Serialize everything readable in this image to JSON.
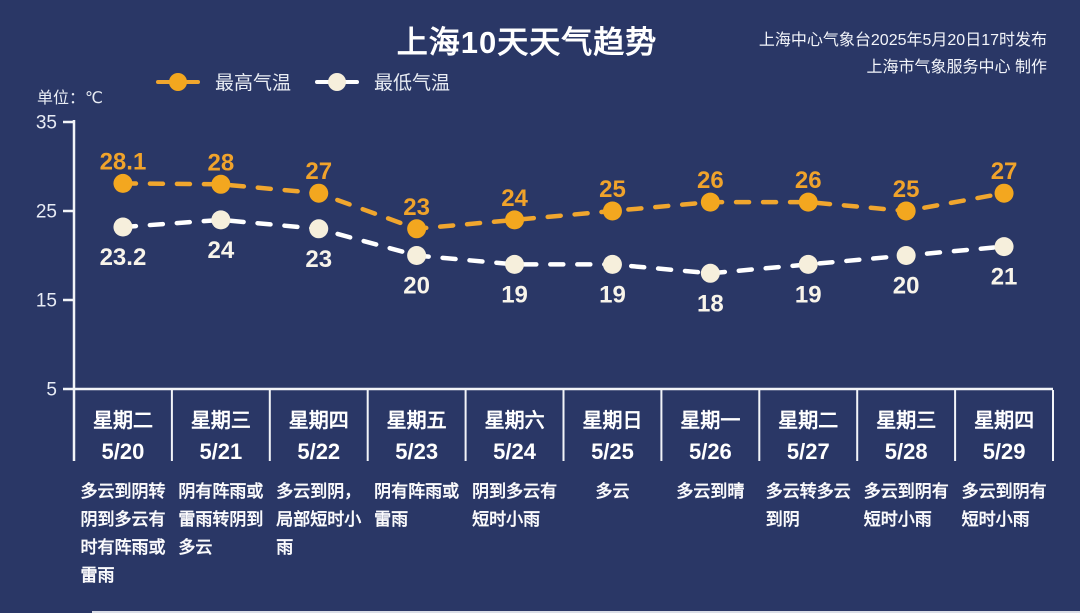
{
  "page": {
    "background": "#2A3766"
  },
  "header": {
    "title": "上海10天天气趋势",
    "issuer_line1": "上海中心气象台2025年5月20日17时发布",
    "issuer_line2": "上海市气象服务中心 制作"
  },
  "unit_label": "单位：℃",
  "legend": [
    {
      "label": "最高气温",
      "line_color": "#F0A62E",
      "dot_color": "#F3A71F"
    },
    {
      "label": "最低气温",
      "line_color": "#FFFFFF",
      "dot_color": "#F6EFDC"
    }
  ],
  "chart_data": {
    "type": "line",
    "title": "上海10天天气趋势",
    "x": [
      "5/20",
      "5/21",
      "5/22",
      "5/23",
      "5/24",
      "5/25",
      "5/26",
      "5/27",
      "5/28",
      "5/29"
    ],
    "series": [
      {
        "name": "最高气温",
        "values": [
          28.1,
          28,
          27,
          23,
          24,
          25,
          26,
          26,
          25,
          27
        ],
        "color": "#F0A62E",
        "dot_color": "#F3A71F",
        "label_color": "#F0A32B",
        "label_position": "above"
      },
      {
        "name": "最低气温",
        "values": [
          23.2,
          24,
          23,
          20,
          19,
          19,
          18,
          19,
          20,
          21
        ],
        "color": "#FFFFFF",
        "dot_color": "#F6EFDC",
        "label_color": "#F8F4EA",
        "label_position": "below"
      }
    ],
    "ylim": [
      5,
      35
    ],
    "yticks": [
      35,
      25,
      15,
      5
    ],
    "ylabel": "单位：℃",
    "line_style": "dashed",
    "grid": false,
    "legend_position": "top-left",
    "axis_color": "#F2F4F8"
  },
  "columns": [
    {
      "day": "星期二",
      "date": "5/20",
      "weather": "多云到阴转\n阴到多云有\n时有阵雨或\n雷雨"
    },
    {
      "day": "星期三",
      "date": "5/21",
      "weather": "阴有阵雨或\n雷雨转阴到\n多云"
    },
    {
      "day": "星期四",
      "date": "5/22",
      "weather": "多云到阴，\n局部短时小\n雨"
    },
    {
      "day": "星期五",
      "date": "5/23",
      "weather": "阴有阵雨或\n雷雨"
    },
    {
      "day": "星期六",
      "date": "5/24",
      "weather": "阴到多云有\n短时小雨"
    },
    {
      "day": "星期日",
      "date": "5/25",
      "weather": "多云"
    },
    {
      "day": "星期一",
      "date": "5/26",
      "weather": "多云到晴"
    },
    {
      "day": "星期二",
      "date": "5/27",
      "weather": "多云转多云\n到阴"
    },
    {
      "day": "星期三",
      "date": "5/28",
      "weather": "多云到阴有\n短时小雨"
    },
    {
      "day": "星期四",
      "date": "5/29",
      "weather": "多云到阴有\n短时小雨"
    }
  ]
}
